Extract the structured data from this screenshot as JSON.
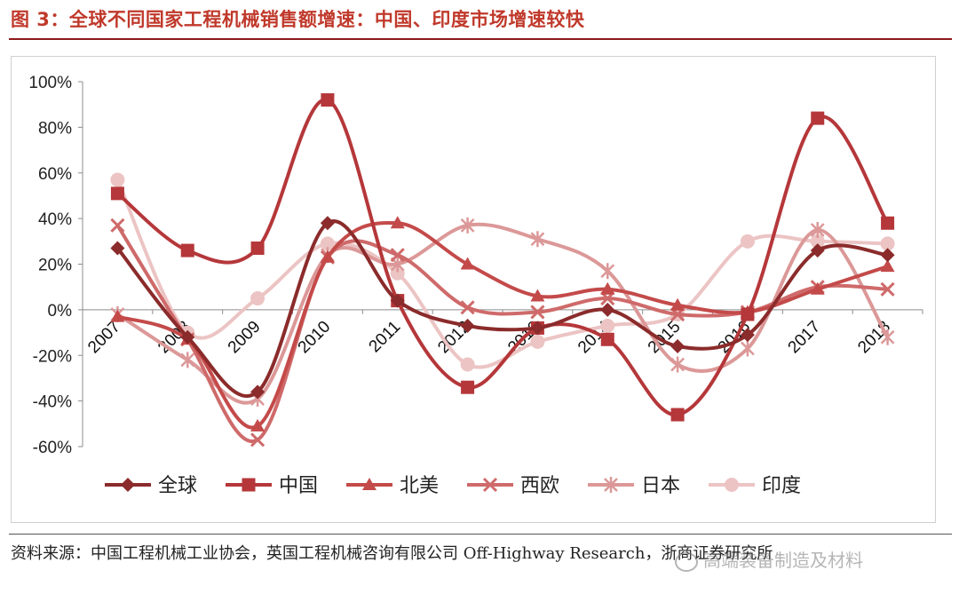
{
  "header": {
    "title": "图 3：全球不同国家工程机械销售额增速：中国、印度市场增速较快"
  },
  "footer": {
    "source": "资料来源：中国工程机械工业协会，英国工程机械咨询有限公司 Off-Highway Research，浙商证券研究所",
    "watermark": "高端装备制造及材料"
  },
  "chart_data": {
    "type": "line",
    "title": "",
    "xlabel": "",
    "ylabel": "",
    "x": [
      "2007",
      "2008",
      "2009",
      "2010",
      "2011",
      "2012",
      "2013",
      "2014",
      "2015",
      "2016",
      "2017",
      "2018"
    ],
    "ylim": [
      -60,
      100
    ],
    "yticks": [
      100,
      80,
      60,
      40,
      20,
      0,
      -20,
      -40,
      -60
    ],
    "ytick_labels": [
      "100%",
      "80%",
      "60%",
      "40%",
      "20%",
      "0%",
      "-20%",
      "-40%",
      "-60%"
    ],
    "grid": false,
    "smooth": true,
    "legend_position": "bottom",
    "series": [
      {
        "name": "全球",
        "marker": "diamond",
        "color": "#8b2b2b",
        "values": [
          27,
          -12,
          -36,
          38,
          4,
          -7,
          -8,
          0,
          -16,
          -11,
          26,
          24
        ]
      },
      {
        "name": "中国",
        "marker": "square",
        "color": "#b5373a",
        "values": [
          51,
          26,
          27,
          92,
          4,
          -34,
          -8,
          -13,
          -46,
          -2,
          84,
          38
        ]
      },
      {
        "name": "北美",
        "marker": "triangle",
        "color": "#c44a4a",
        "values": [
          -3,
          -13,
          -51,
          23,
          38,
          20,
          6,
          9,
          2,
          -1,
          9,
          19
        ]
      },
      {
        "name": "西欧",
        "marker": "x",
        "color": "#cf6a6a",
        "values": [
          37,
          -13,
          -57,
          23,
          24,
          1,
          -1,
          5,
          -2,
          -1,
          10,
          9
        ]
      },
      {
        "name": "日本",
        "marker": "asterisk",
        "color": "#dc9898",
        "values": [
          -2,
          -22,
          -39,
          24,
          20,
          37,
          31,
          17,
          -24,
          -17,
          35,
          -12
        ]
      },
      {
        "name": "印度",
        "marker": "circle",
        "color": "#ecc4c4",
        "values": [
          57,
          -10,
          5,
          29,
          16,
          -24,
          -14,
          -7,
          -2,
          30,
          30,
          29
        ]
      }
    ]
  }
}
